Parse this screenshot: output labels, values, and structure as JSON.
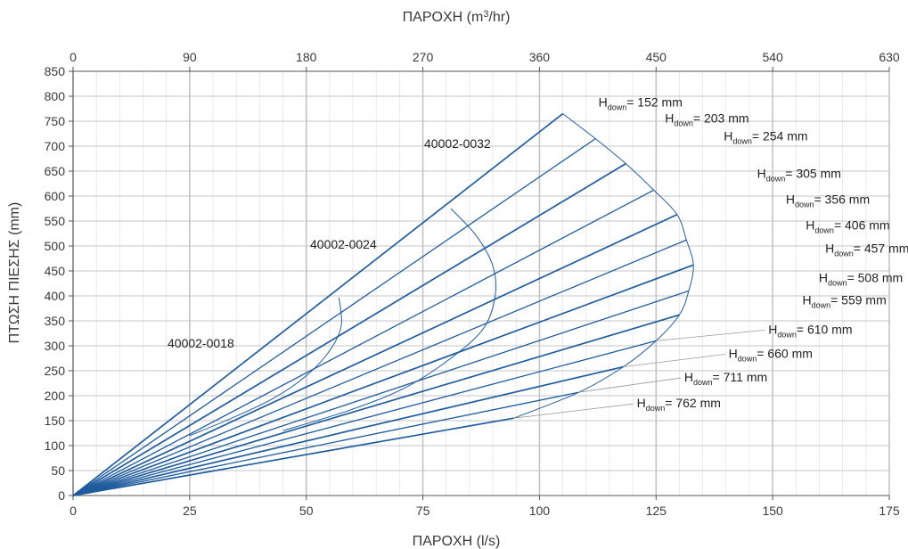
{
  "chart_data": {
    "type": "line",
    "title": "",
    "xlabel": "ΠΑΡΟΧΗ (l/s)",
    "ylabel": "ΠΤΩΣΗ ΠΙΕΣΗΣ (mm)",
    "x2label": {
      "pre": "ΠΑΡΟΧΗ (m",
      "sup": "3",
      "post": "/hr)"
    },
    "xlim": [
      0,
      175
    ],
    "ylim": [
      0,
      850
    ],
    "x2lim": [
      0,
      630
    ],
    "x_ticks": [
      "0",
      "25",
      "50",
      "75",
      "100",
      "125",
      "150",
      "175"
    ],
    "x_tick_values": [
      0,
      25,
      50,
      75,
      100,
      125,
      150,
      175
    ],
    "y_ticks": [
      "0",
      "50",
      "100",
      "150",
      "200",
      "250",
      "300",
      "350",
      "400",
      "450",
      "500",
      "550",
      "600",
      "650",
      "700",
      "750",
      "800",
      "850"
    ],
    "y_tick_values": [
      0,
      50,
      100,
      150,
      200,
      250,
      300,
      350,
      400,
      450,
      500,
      550,
      600,
      650,
      700,
      750,
      800,
      850
    ],
    "x2_ticks": [
      "0",
      "90",
      "180",
      "270",
      "360",
      "450",
      "540",
      "630"
    ],
    "x2_tick_values": [
      0,
      90,
      180,
      270,
      360,
      450,
      540,
      630
    ],
    "grid": true,
    "series_end_points": [
      {
        "label": "152 mm",
        "x": 105.0,
        "y": 765
      },
      {
        "label": "203 mm",
        "x": 112.0,
        "y": 715
      },
      {
        "label": "254 mm",
        "x": 118.5,
        "y": 665
      },
      {
        "label": "305 mm",
        "x": 124.5,
        "y": 612
      },
      {
        "label": "356 mm",
        "x": 129.5,
        "y": 563
      },
      {
        "label": "406 mm",
        "x": 131.5,
        "y": 512
      },
      {
        "label": "457 mm",
        "x": 133.0,
        "y": 462
      },
      {
        "label": "508 mm",
        "x": 132.0,
        "y": 410
      },
      {
        "label": "559 mm",
        "x": 130.0,
        "y": 362
      },
      {
        "label": "610 mm",
        "x": 125.0,
        "y": 310
      },
      {
        "label": "660 mm",
        "x": 118.0,
        "y": 258
      },
      {
        "label": "711 mm",
        "x": 108.5,
        "y": 207
      },
      {
        "label": "762 mm",
        "x": 94.5,
        "y": 155
      }
    ],
    "label_prefix": "H",
    "label_subscript": "down",
    "label_equals": "= ",
    "boundary_curves": [
      {
        "name": "40002-0018",
        "points": [
          [
            57.0,
            397
          ],
          [
            57.5,
            340
          ],
          [
            55.0,
            290
          ],
          [
            50.0,
            240
          ],
          [
            43.0,
            195
          ],
          [
            34.0,
            155
          ],
          [
            25.0,
            120
          ]
        ]
      },
      {
        "name": "40002-0024",
        "points": [
          [
            81.0,
            575
          ],
          [
            86.5,
            520
          ],
          [
            90.0,
            460
          ],
          [
            90.5,
            400
          ],
          [
            88.0,
            335
          ],
          [
            81.0,
            275
          ],
          [
            71.0,
            215
          ],
          [
            59.0,
            170
          ],
          [
            45.0,
            130
          ]
        ]
      },
      {
        "name": "40002-0032",
        "points": [
          [
            105.0,
            765
          ],
          [
            112.0,
            715
          ],
          [
            118.5,
            665
          ],
          [
            124.5,
            612
          ],
          [
            129.5,
            563
          ],
          [
            131.5,
            512
          ],
          [
            133.0,
            462
          ],
          [
            132.0,
            410
          ],
          [
            130.0,
            362
          ],
          [
            125.0,
            310
          ],
          [
            118.0,
            258
          ],
          [
            108.5,
            207
          ],
          [
            94.5,
            155
          ]
        ]
      }
    ],
    "boundary_labels": [
      "40002-0018",
      "40002-0024",
      "40002-0032"
    ],
    "colors": {
      "line": "#1f5c9e",
      "grid": "#c4c4c4",
      "text": "#3a3a3a",
      "leader": "#9a9a9a"
    }
  }
}
